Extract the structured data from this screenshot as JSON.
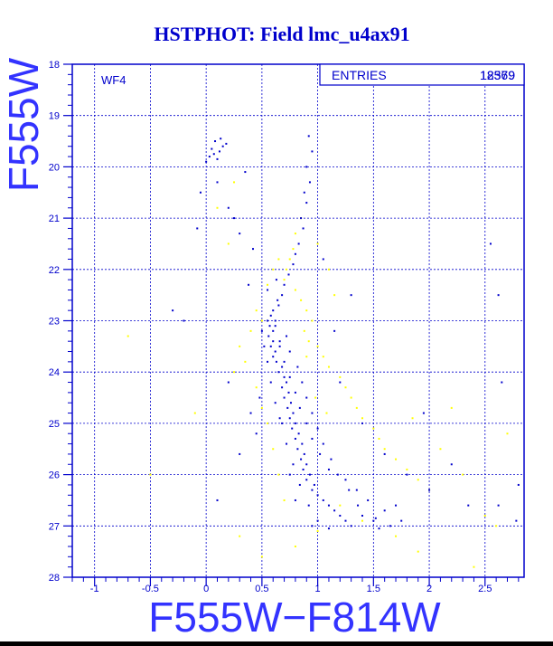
{
  "chart_data": {
    "type": "scatter",
    "title": "HSTPHOT: Field lmc_u4ax91",
    "xlabel": "F555W−F814W",
    "ylabel": "F555W",
    "xlim": [
      -1.2,
      2.85
    ],
    "ylim": [
      28,
      18
    ],
    "y_inverted": true,
    "grid": true,
    "x_ticks": [
      -1,
      -0.5,
      0,
      0.5,
      1,
      1.5,
      2,
      2.5
    ],
    "x_tick_labels": [
      "-1",
      "-0.5",
      "0",
      "0.5",
      "1",
      "1.5",
      "2",
      "2.5"
    ],
    "y_ticks": [
      18,
      19,
      20,
      21,
      22,
      23,
      24,
      25,
      26,
      27,
      28
    ],
    "y_tick_labels": [
      "18",
      "19",
      "20",
      "21",
      "22",
      "23",
      "24",
      "25",
      "26",
      "27",
      "28"
    ],
    "annotation": "WF4",
    "stats_box": {
      "label": "ENTRIES",
      "value_a": "12579",
      "value_b": "18369"
    },
    "colors": {
      "frame": "#0000cc",
      "blue_points": "#0000cc",
      "yellow_points": "#ffff00",
      "background": "#ffffff"
    },
    "series": [
      {
        "color": "#0000cc",
        "points": [
          [
            0.05,
            19.65
          ],
          [
            0.08,
            19.5
          ],
          [
            0.12,
            19.7
          ],
          [
            0.1,
            19.85
          ],
          [
            0.15,
            19.6
          ],
          [
            0.03,
            19.8
          ],
          [
            0.07,
            19.75
          ],
          [
            0.0,
            19.9
          ],
          [
            0.13,
            19.45
          ],
          [
            0.18,
            19.55
          ],
          [
            0.1,
            20.3
          ],
          [
            -0.05,
            20.5
          ],
          [
            0.2,
            20.8
          ],
          [
            -0.08,
            21.2
          ],
          [
            0.35,
            20.1
          ],
          [
            0.25,
            21.0
          ],
          [
            0.92,
            19.4
          ],
          [
            0.95,
            19.7
          ],
          [
            0.9,
            20.0
          ],
          [
            0.93,
            20.3
          ],
          [
            0.88,
            20.5
          ],
          [
            0.9,
            20.7
          ],
          [
            0.85,
            21.0
          ],
          [
            0.87,
            21.2
          ],
          [
            0.83,
            21.5
          ],
          [
            0.8,
            21.7
          ],
          [
            0.78,
            21.9
          ],
          [
            0.74,
            22.1
          ],
          [
            0.7,
            22.3
          ],
          [
            0.68,
            22.5
          ],
          [
            0.64,
            22.6
          ],
          [
            0.6,
            22.8
          ],
          [
            0.58,
            22.9
          ],
          [
            0.62,
            23.0
          ],
          [
            0.57,
            23.1
          ],
          [
            0.6,
            23.2
          ],
          [
            0.55,
            23.0
          ],
          [
            0.65,
            22.7
          ],
          [
            0.55,
            22.4
          ],
          [
            0.63,
            22.2
          ],
          [
            0.6,
            23.4
          ],
          [
            0.58,
            23.5
          ],
          [
            0.62,
            23.6
          ],
          [
            0.56,
            23.3
          ],
          [
            0.66,
            23.5
          ],
          [
            0.6,
            23.7
          ],
          [
            0.63,
            23.8
          ],
          [
            0.68,
            23.9
          ],
          [
            0.65,
            24.0
          ],
          [
            0.7,
            24.1
          ],
          [
            0.72,
            24.2
          ],
          [
            0.68,
            24.3
          ],
          [
            0.74,
            24.4
          ],
          [
            0.7,
            24.5
          ],
          [
            0.76,
            24.6
          ],
          [
            0.73,
            24.7
          ],
          [
            0.78,
            24.8
          ],
          [
            0.75,
            24.9
          ],
          [
            0.8,
            25.0
          ],
          [
            0.77,
            25.1
          ],
          [
            0.83,
            25.2
          ],
          [
            0.8,
            25.3
          ],
          [
            0.86,
            25.4
          ],
          [
            0.82,
            25.5
          ],
          [
            0.88,
            25.6
          ],
          [
            0.85,
            25.7
          ],
          [
            0.9,
            25.8
          ],
          [
            0.87,
            25.9
          ],
          [
            0.93,
            26.0
          ],
          [
            0.9,
            26.1
          ],
          [
            0.97,
            26.2
          ],
          [
            0.95,
            26.3
          ],
          [
            1.0,
            26.4
          ],
          [
            1.05,
            26.5
          ],
          [
            1.1,
            26.6
          ],
          [
            1.15,
            26.7
          ],
          [
            1.2,
            26.8
          ],
          [
            1.25,
            26.9
          ],
          [
            1.3,
            27.0
          ],
          [
            1.4,
            26.8
          ],
          [
            1.5,
            26.9
          ],
          [
            1.6,
            26.7
          ],
          [
            1.7,
            26.6
          ],
          [
            1.45,
            26.5
          ],
          [
            1.35,
            26.3
          ],
          [
            1.25,
            26.1
          ],
          [
            1.1,
            25.9
          ],
          [
            1.02,
            25.6
          ],
          [
            0.95,
            25.3
          ],
          [
            0.9,
            25.0
          ],
          [
            0.84,
            24.7
          ],
          [
            0.8,
            24.4
          ],
          [
            0.75,
            24.1
          ],
          [
            0.7,
            23.8
          ],
          [
            0.66,
            23.4
          ],
          [
            0.62,
            23.1
          ],
          [
            0.72,
            23.3
          ],
          [
            0.75,
            23.6
          ],
          [
            0.82,
            23.9
          ],
          [
            0.86,
            24.2
          ],
          [
            0.9,
            24.5
          ],
          [
            0.95,
            24.8
          ],
          [
            1.0,
            25.1
          ],
          [
            1.05,
            25.4
          ],
          [
            1.12,
            25.7
          ],
          [
            1.18,
            26.0
          ],
          [
            1.28,
            26.3
          ],
          [
            1.36,
            26.6
          ],
          [
            1.52,
            26.85
          ],
          [
            1.65,
            27.0
          ],
          [
            1.55,
            27.05
          ],
          [
            1.75,
            26.9
          ],
          [
            0.68,
            25.0
          ],
          [
            0.72,
            25.4
          ],
          [
            0.78,
            25.8
          ],
          [
            0.84,
            26.2
          ],
          [
            0.92,
            26.6
          ],
          [
            0.62,
            24.6
          ],
          [
            0.66,
            24.9
          ],
          [
            0.58,
            24.2
          ],
          [
            0.55,
            23.8
          ],
          [
            0.52,
            23.5
          ],
          [
            0.5,
            23.2
          ],
          [
            0.48,
            24.5
          ],
          [
            0.45,
            25.2
          ],
          [
            0.4,
            24.8
          ],
          [
            0.3,
            25.6
          ],
          [
            0.2,
            24.2
          ],
          [
            0.1,
            26.5
          ],
          [
            -0.2,
            23.0
          ],
          [
            -0.3,
            22.8
          ],
          [
            1.2,
            24.2
          ],
          [
            1.4,
            25.0
          ],
          [
            1.6,
            25.6
          ],
          [
            1.8,
            26.0
          ],
          [
            2.0,
            26.3
          ],
          [
            2.2,
            25.8
          ],
          [
            2.35,
            26.6
          ],
          [
            2.62,
            26.6
          ],
          [
            2.8,
            26.2
          ],
          [
            2.78,
            26.9
          ],
          [
            2.55,
            21.5
          ],
          [
            2.65,
            24.2
          ],
          [
            2.62,
            22.5
          ],
          [
            1.95,
            24.8
          ],
          [
            1.05,
            21.8
          ],
          [
            1.3,
            22.5
          ],
          [
            1.15,
            23.2
          ],
          [
            0.38,
            22.3
          ],
          [
            0.42,
            21.6
          ],
          [
            0.3,
            21.3
          ],
          [
            0.95,
            27.0
          ],
          [
            1.0,
            26.9
          ],
          [
            1.1,
            27.05
          ],
          [
            0.8,
            26.5
          ],
          [
            0.75,
            26.0
          ]
        ]
      },
      {
        "color": "#ffff00",
        "points": [
          [
            0.85,
            21.0
          ],
          [
            0.8,
            21.3
          ],
          [
            0.78,
            21.6
          ],
          [
            0.75,
            21.8
          ],
          [
            0.72,
            22.0
          ],
          [
            0.7,
            22.2
          ],
          [
            0.8,
            22.4
          ],
          [
            0.85,
            22.6
          ],
          [
            0.9,
            22.8
          ],
          [
            0.95,
            23.0
          ],
          [
            0.88,
            23.2
          ],
          [
            0.92,
            23.4
          ],
          [
            1.0,
            23.5
          ],
          [
            1.05,
            23.7
          ],
          [
            1.1,
            23.9
          ],
          [
            1.2,
            24.1
          ],
          [
            1.25,
            24.3
          ],
          [
            1.3,
            24.5
          ],
          [
            1.35,
            24.7
          ],
          [
            1.4,
            24.9
          ],
          [
            1.5,
            25.1
          ],
          [
            1.55,
            25.3
          ],
          [
            1.6,
            25.5
          ],
          [
            1.7,
            25.7
          ],
          [
            1.8,
            25.9
          ],
          [
            1.9,
            26.1
          ],
          [
            2.0,
            26.3
          ],
          [
            0.45,
            22.8
          ],
          [
            0.5,
            23.0
          ],
          [
            0.4,
            23.2
          ],
          [
            0.3,
            23.5
          ],
          [
            0.35,
            23.8
          ],
          [
            0.25,
            24.0
          ],
          [
            0.45,
            24.3
          ],
          [
            0.5,
            24.7
          ],
          [
            0.55,
            25.0
          ],
          [
            0.6,
            25.5
          ],
          [
            0.65,
            26.0
          ],
          [
            0.7,
            26.5
          ],
          [
            1.15,
            22.5
          ],
          [
            1.1,
            22.0
          ],
          [
            1.0,
            21.5
          ],
          [
            0.65,
            21.8
          ],
          [
            0.6,
            22.0
          ],
          [
            0.55,
            22.3
          ],
          [
            1.85,
            24.9
          ],
          [
            2.1,
            25.5
          ],
          [
            2.3,
            26.0
          ],
          [
            2.5,
            26.8
          ],
          [
            2.6,
            27.0
          ],
          [
            1.2,
            26.6
          ],
          [
            1.4,
            26.9
          ],
          [
            1.7,
            27.2
          ],
          [
            1.9,
            27.5
          ],
          [
            2.4,
            27.8
          ],
          [
            0.2,
            21.5
          ],
          [
            0.1,
            20.8
          ],
          [
            0.25,
            20.3
          ],
          [
            -0.1,
            24.8
          ],
          [
            -0.5,
            26.0
          ],
          [
            -0.7,
            23.3
          ],
          [
            0.3,
            27.2
          ],
          [
            0.5,
            27.6
          ],
          [
            0.8,
            27.4
          ],
          [
            1.0,
            27.1
          ],
          [
            2.2,
            24.7
          ],
          [
            2.7,
            25.2
          ],
          [
            0.98,
            24.5
          ],
          [
            1.08,
            24.8
          ],
          [
            0.9,
            23.7
          ]
        ]
      }
    ]
  }
}
